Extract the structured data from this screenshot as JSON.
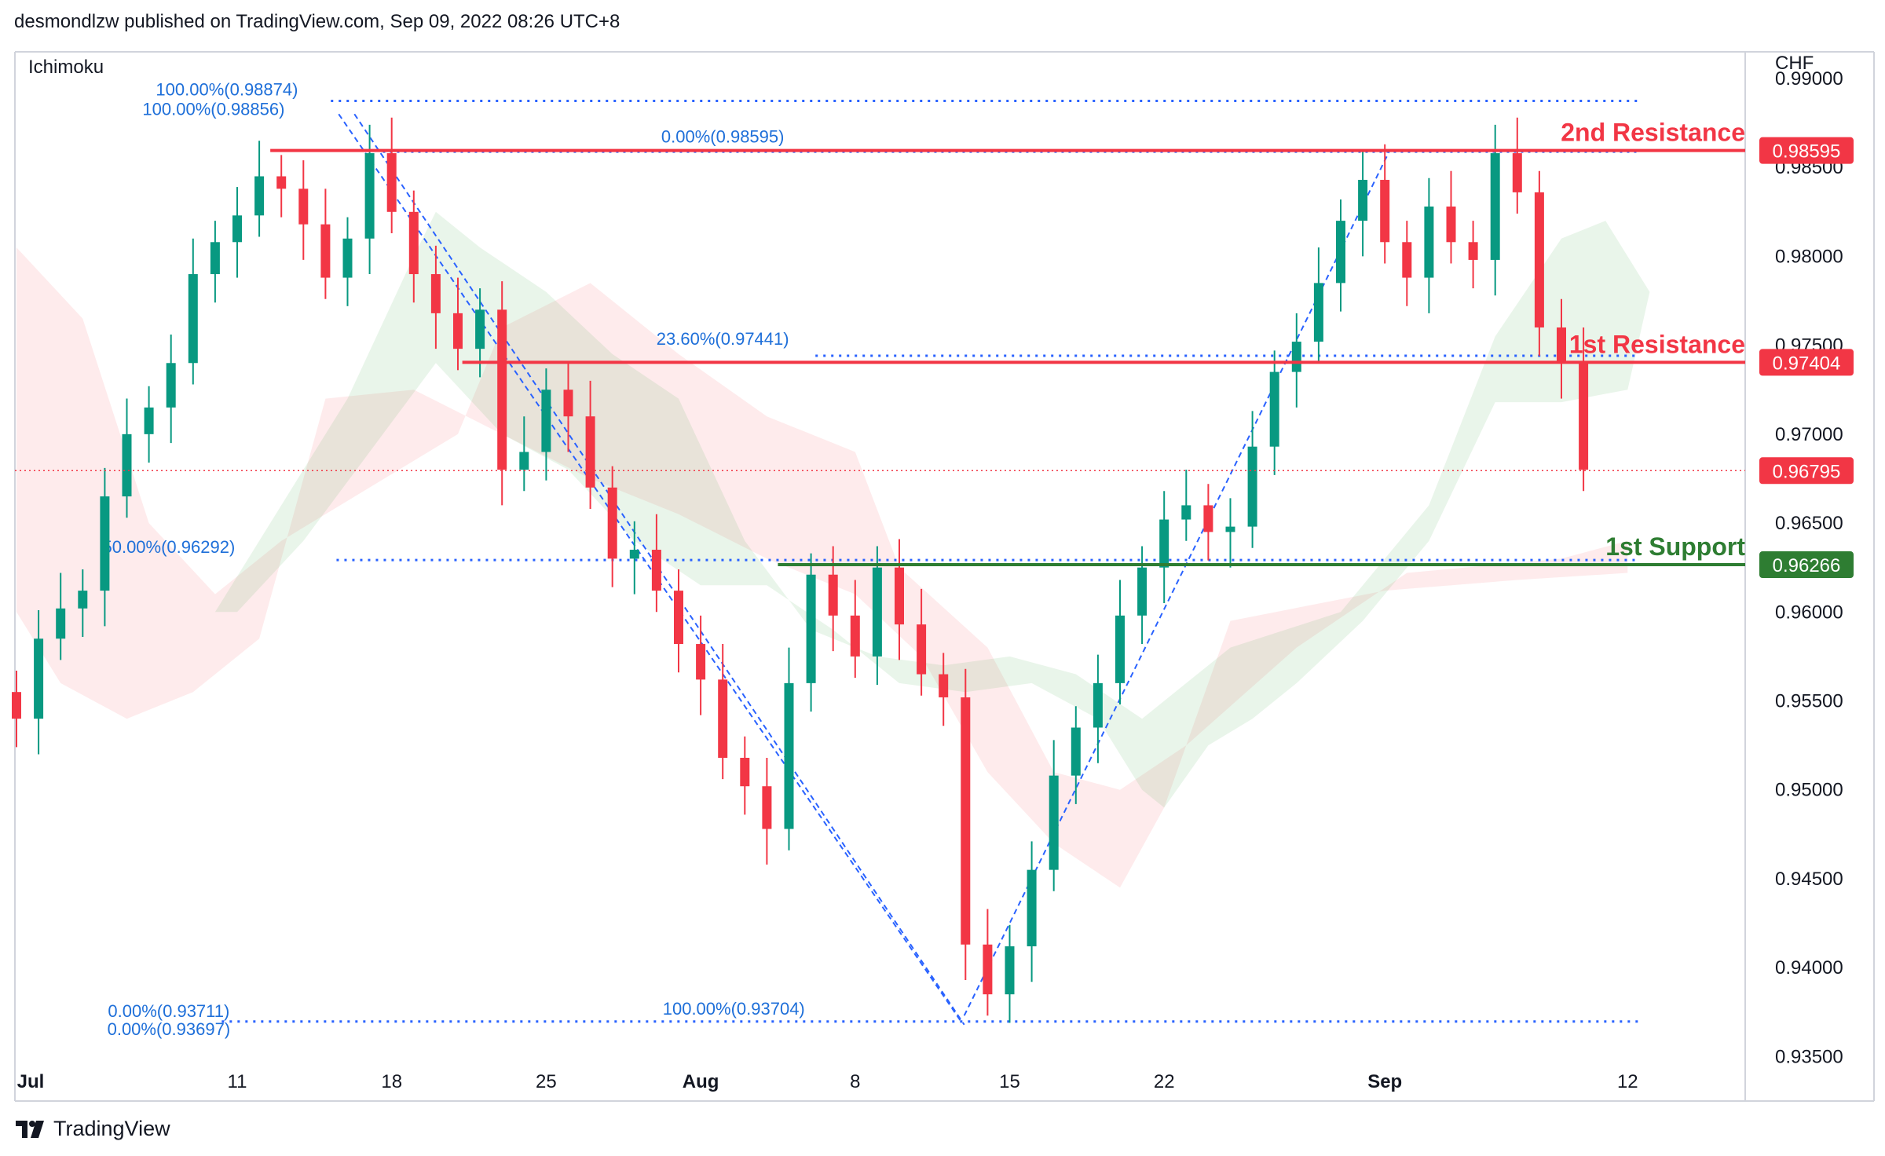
{
  "header": {
    "attribution": "desmondlzw published on TradingView.com, Sep 09, 2022 08:26 UTC+8"
  },
  "footer": {
    "brand": "TradingView",
    "logo_icon": "tradingview-logo-icon"
  },
  "chart_data": {
    "type": "candlestick",
    "indicator": "Ichimoku",
    "currency": "CHF",
    "ylim": [
      0.9325,
      0.9915
    ],
    "y_ticks": [
      "0.99000",
      "0.98500",
      "0.98000",
      "0.97500",
      "0.97000",
      "0.96500",
      "0.96000",
      "0.95500",
      "0.95000",
      "0.94500",
      "0.94000",
      "0.93500"
    ],
    "x_ticks": [
      {
        "label": "Jul",
        "day": 0,
        "bold": true
      },
      {
        "label": "11",
        "day": 10
      },
      {
        "label": "18",
        "day": 17
      },
      {
        "label": "25",
        "day": 24
      },
      {
        "label": "Aug",
        "day": 31,
        "bold": true
      },
      {
        "label": "8",
        "day": 38
      },
      {
        "label": "15",
        "day": 45
      },
      {
        "label": "22",
        "day": 52
      },
      {
        "label": "Sep",
        "day": 62,
        "bold": true
      },
      {
        "label": "12",
        "day": 73
      }
    ],
    "last_price": 0.96795,
    "levels": [
      {
        "name": "2nd Resistance",
        "value": 0.98595,
        "price_label": "0.98595",
        "color": "#f23645",
        "start_day": 11.5
      },
      {
        "name": "1st Resistance",
        "value": 0.97404,
        "price_label": "0.97404",
        "color": "#f23645",
        "start_day": 20.2
      },
      {
        "name": "1st Support",
        "value": 0.96266,
        "price_label": "0.96266",
        "color": "#2e7d32",
        "start_day": 34.5
      }
    ],
    "last_price_label": "0.96795",
    "fib_down": {
      "start_day": 14.6,
      "end_day": 42.8,
      "high_labels": [
        "100.00%(0.98874)",
        "100.00%(0.98856)"
      ],
      "low_labels": [
        "0.00%(0.93711)",
        "0.00%(0.93697)"
      ],
      "high": 0.98874,
      "low": 0.93697
    },
    "fib_up": {
      "start_day": 42.8,
      "end_day": 70.5,
      "levels": [
        {
          "label": "0.00%(0.98595)",
          "value": 0.98595
        },
        {
          "label": "23.60%(0.97441)",
          "value": 0.97441
        },
        {
          "label": "50.00%(0.96292)",
          "value": 0.96292
        },
        {
          "label": "100.00%(0.93704)",
          "value": 0.93704
        }
      ]
    },
    "candles_close": [
      0.954,
      0.9585,
      0.9602,
      0.9612,
      0.9665,
      0.97,
      0.9715,
      0.974,
      0.979,
      0.9808,
      0.9823,
      0.9845,
      0.9838,
      0.9818,
      0.9788,
      0.981,
      0.9858,
      0.9825,
      0.979,
      0.9768,
      0.9748,
      0.977,
      0.968,
      0.969,
      0.9725,
      0.971,
      0.967,
      0.963,
      0.9635,
      0.9612,
      0.9582,
      0.9562,
      0.9518,
      0.9502,
      0.9478,
      0.956,
      0.9621,
      0.9598,
      0.9575,
      0.9625,
      0.9593,
      0.9565,
      0.9552,
      0.9413,
      0.9385,
      0.9412,
      0.9455,
      0.9508,
      0.9535,
      0.956,
      0.9598,
      0.9625,
      0.9652,
      0.966,
      0.9645,
      0.9648,
      0.9693,
      0.9735,
      0.9752,
      0.9785,
      0.982,
      0.9843,
      0.9808,
      0.9788,
      0.9828,
      0.9808,
      0.9798,
      0.9858,
      0.9836,
      0.976,
      0.974,
      0.968
    ]
  }
}
